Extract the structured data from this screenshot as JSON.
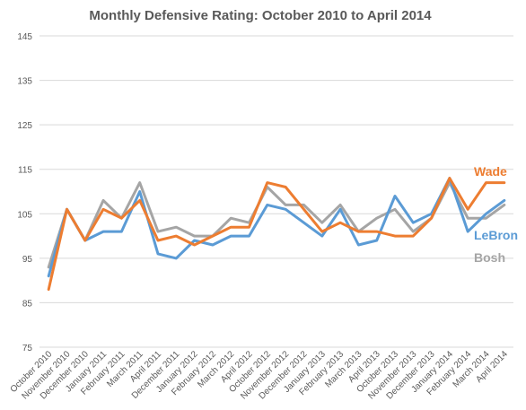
{
  "chart_data": {
    "type": "line",
    "title": "Monthly Defensive Rating: October 2010 to April 2014",
    "xlabel": "",
    "ylabel": "",
    "ylim": [
      75,
      145
    ],
    "yticks": [
      75,
      85,
      95,
      105,
      115,
      125,
      135,
      145
    ],
    "grid": true,
    "legend": "inline labels at right end of lines",
    "categories": [
      "October 2010",
      "November 2010",
      "December 2010",
      "January 2011",
      "February 2011",
      "March 2011",
      "April 2011",
      "December 2011",
      "January 2012",
      "February 2012",
      "March 2012",
      "April 2012",
      "October 2012",
      "November 2012",
      "December 2012",
      "January 2013",
      "February 2013",
      "March 2013",
      "April 2013",
      "October 2013",
      "November 2013",
      "December 2013",
      "January 2014",
      "February 2014",
      "March 2014",
      "April 2014"
    ],
    "series": [
      {
        "name": "Wade",
        "color": "#ED7D31",
        "values": [
          88,
          106,
          99,
          106,
          104,
          108,
          99,
          100,
          98,
          100,
          102,
          102,
          112,
          111,
          106,
          101,
          103,
          101,
          101,
          100,
          100,
          104,
          113,
          106,
          112,
          112
        ]
      },
      {
        "name": "LeBron",
        "color": "#5B9BD5",
        "values": [
          91,
          106,
          99,
          101,
          101,
          110,
          96,
          95,
          99,
          98,
          100,
          100,
          107,
          106,
          103,
          100,
          106,
          98,
          99,
          109,
          103,
          105,
          113,
          101,
          105,
          108
        ]
      },
      {
        "name": "Bosh",
        "color": "#A5A5A5",
        "values": [
          93,
          106,
          99,
          108,
          104,
          112,
          101,
          102,
          100,
          100,
          104,
          103,
          111,
          107,
          107,
          103,
          107,
          101,
          104,
          106,
          101,
          104,
          112,
          104,
          104,
          107
        ]
      }
    ]
  }
}
